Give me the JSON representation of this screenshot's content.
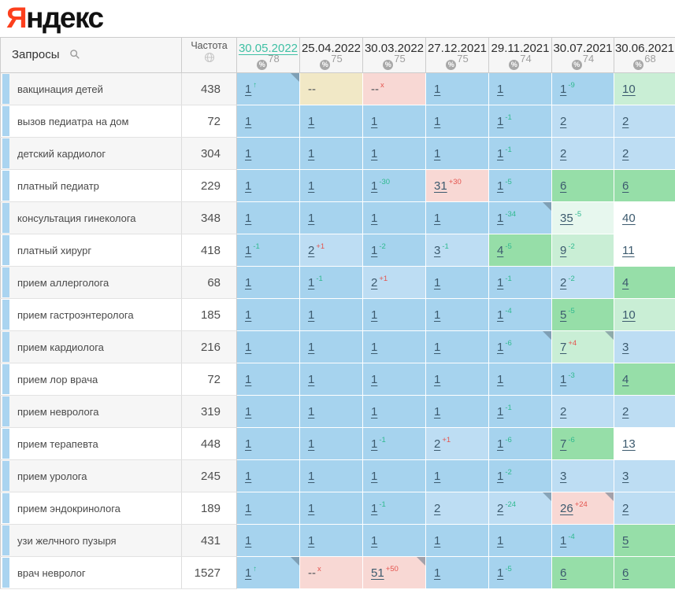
{
  "logo": {
    "first_letter": "Я",
    "rest": "ндекс"
  },
  "palette": {
    "pos_top1": "#a6d3ee",
    "pos_top3": "#bdddf3",
    "pos_top10": "#96dea8",
    "pos_top10_light": "#c9eed5",
    "pos_pale_green": "#e7f7ee",
    "pos_drop": "#f8d8d4",
    "pos_none": "#f1e8c6",
    "row_strip": "#aad4f0",
    "change_up": "#2fb98f",
    "change_down": "#e4544e",
    "selected_date": "#3fc0a4",
    "position_text": "#3c5a6e"
  },
  "header": {
    "queries_label": "Запросы",
    "search_icon": "magnifier",
    "frequency_label": "Частота",
    "frequency_icon": "globe",
    "percent_icon": "%",
    "dates": [
      {
        "label": "30.05.2022",
        "visibility": "78",
        "selected": true
      },
      {
        "label": "25.04.2022",
        "visibility": "75",
        "selected": false
      },
      {
        "label": "30.03.2022",
        "visibility": "75",
        "selected": false
      },
      {
        "label": "27.12.2021",
        "visibility": "75",
        "selected": false
      },
      {
        "label": "29.11.2021",
        "visibility": "74",
        "selected": false
      },
      {
        "label": "30.07.2021",
        "visibility": "74",
        "selected": false
      },
      {
        "label": "30.06.2021",
        "visibility": "68",
        "selected": false
      }
    ]
  },
  "rows": [
    {
      "query": "вакцинация детей",
      "frequency": "438",
      "cells": [
        {
          "t": "1",
          "s": "↑",
          "sc": "up",
          "bg": "top1",
          "tri": true
        },
        {
          "t": "--",
          "bg": "none",
          "nolink": true
        },
        {
          "t": "--",
          "s": "x",
          "sc": "down",
          "bg": "drop",
          "nolink": true
        },
        {
          "t": "1",
          "bg": "top1"
        },
        {
          "t": "1",
          "bg": "top1"
        },
        {
          "t": "1",
          "s": "-9",
          "sc": "up",
          "bg": "top1"
        },
        {
          "t": "10",
          "bg": "lightgreen"
        }
      ]
    },
    {
      "query": "вызов педиатра на дом",
      "frequency": "72",
      "cells": [
        {
          "t": "1",
          "bg": "top1"
        },
        {
          "t": "1",
          "bg": "top1"
        },
        {
          "t": "1",
          "bg": "top1"
        },
        {
          "t": "1",
          "bg": "top1"
        },
        {
          "t": "1",
          "s": "-1",
          "sc": "up",
          "bg": "top1"
        },
        {
          "t": "2",
          "bg": "top3"
        },
        {
          "t": "2",
          "bg": "top3"
        }
      ]
    },
    {
      "query": "детский кардиолог",
      "frequency": "304",
      "cells": [
        {
          "t": "1",
          "bg": "top1"
        },
        {
          "t": "1",
          "bg": "top1"
        },
        {
          "t": "1",
          "bg": "top1"
        },
        {
          "t": "1",
          "bg": "top1"
        },
        {
          "t": "1",
          "s": "-1",
          "sc": "up",
          "bg": "top1"
        },
        {
          "t": "2",
          "bg": "top3"
        },
        {
          "t": "2",
          "bg": "top3"
        }
      ]
    },
    {
      "query": "платный педиатр",
      "frequency": "229",
      "cells": [
        {
          "t": "1",
          "bg": "top1"
        },
        {
          "t": "1",
          "bg": "top1"
        },
        {
          "t": "1",
          "s": "-30",
          "sc": "up",
          "bg": "top1"
        },
        {
          "t": "31",
          "s": "+30",
          "sc": "down",
          "bg": "drop"
        },
        {
          "t": "1",
          "s": "-5",
          "sc": "up",
          "bg": "top1"
        },
        {
          "t": "6",
          "bg": "green"
        },
        {
          "t": "6",
          "bg": "green"
        }
      ]
    },
    {
      "query": "консультация гинеколога",
      "frequency": "348",
      "cells": [
        {
          "t": "1",
          "bg": "top1"
        },
        {
          "t": "1",
          "bg": "top1"
        },
        {
          "t": "1",
          "bg": "top1"
        },
        {
          "t": "1",
          "bg": "top1"
        },
        {
          "t": "1",
          "s": "-34",
          "sc": "up",
          "bg": "top1",
          "tri": true
        },
        {
          "t": "35",
          "s": "-5",
          "sc": "up",
          "bg": "palegreen"
        },
        {
          "t": "40",
          "bg": "white"
        }
      ]
    },
    {
      "query": "платный хирург",
      "frequency": "418",
      "cells": [
        {
          "t": "1",
          "s": "-1",
          "sc": "up",
          "bg": "top1"
        },
        {
          "t": "2",
          "s": "+1",
          "sc": "down",
          "bg": "top3"
        },
        {
          "t": "1",
          "s": "-2",
          "sc": "up",
          "bg": "top1"
        },
        {
          "t": "3",
          "s": "-1",
          "sc": "up",
          "bg": "top3"
        },
        {
          "t": "4",
          "s": "-5",
          "sc": "up",
          "bg": "green"
        },
        {
          "t": "9",
          "s": "-2",
          "sc": "up",
          "bg": "lightgreen"
        },
        {
          "t": "11",
          "bg": "white"
        }
      ]
    },
    {
      "query": "прием аллерголога",
      "frequency": "68",
      "cells": [
        {
          "t": "1",
          "bg": "top1"
        },
        {
          "t": "1",
          "s": "-1",
          "sc": "up",
          "bg": "top1"
        },
        {
          "t": "2",
          "s": "+1",
          "sc": "down",
          "bg": "top3"
        },
        {
          "t": "1",
          "bg": "top1"
        },
        {
          "t": "1",
          "s": "-1",
          "sc": "up",
          "bg": "top1"
        },
        {
          "t": "2",
          "s": "-2",
          "sc": "up",
          "bg": "top3"
        },
        {
          "t": "4",
          "bg": "green"
        }
      ]
    },
    {
      "query": "прием гастроэнтеролога",
      "frequency": "185",
      "cells": [
        {
          "t": "1",
          "bg": "top1"
        },
        {
          "t": "1",
          "bg": "top1"
        },
        {
          "t": "1",
          "bg": "top1"
        },
        {
          "t": "1",
          "bg": "top1"
        },
        {
          "t": "1",
          "s": "-4",
          "sc": "up",
          "bg": "top1"
        },
        {
          "t": "5",
          "s": "-5",
          "sc": "up",
          "bg": "green"
        },
        {
          "t": "10",
          "bg": "lightgreen"
        }
      ]
    },
    {
      "query": "прием кардиолога",
      "frequency": "216",
      "cells": [
        {
          "t": "1",
          "bg": "top1"
        },
        {
          "t": "1",
          "bg": "top1"
        },
        {
          "t": "1",
          "bg": "top1"
        },
        {
          "t": "1",
          "bg": "top1"
        },
        {
          "t": "1",
          "s": "-6",
          "sc": "up",
          "bg": "top1",
          "tri": true
        },
        {
          "t": "7",
          "s": "+4",
          "sc": "down",
          "bg": "lightgreen",
          "tri": true
        },
        {
          "t": "3",
          "bg": "top3"
        }
      ]
    },
    {
      "query": "прием лор врача",
      "frequency": "72",
      "cells": [
        {
          "t": "1",
          "bg": "top1"
        },
        {
          "t": "1",
          "bg": "top1"
        },
        {
          "t": "1",
          "bg": "top1"
        },
        {
          "t": "1",
          "bg": "top1"
        },
        {
          "t": "1",
          "bg": "top1"
        },
        {
          "t": "1",
          "s": "-3",
          "sc": "up",
          "bg": "top1"
        },
        {
          "t": "4",
          "bg": "green"
        }
      ]
    },
    {
      "query": "прием невролога",
      "frequency": "319",
      "cells": [
        {
          "t": "1",
          "bg": "top1"
        },
        {
          "t": "1",
          "bg": "top1"
        },
        {
          "t": "1",
          "bg": "top1"
        },
        {
          "t": "1",
          "bg": "top1"
        },
        {
          "t": "1",
          "s": "-1",
          "sc": "up",
          "bg": "top1"
        },
        {
          "t": "2",
          "bg": "top3"
        },
        {
          "t": "2",
          "bg": "top3"
        }
      ]
    },
    {
      "query": "прием терапевта",
      "frequency": "448",
      "cells": [
        {
          "t": "1",
          "bg": "top1"
        },
        {
          "t": "1",
          "bg": "top1"
        },
        {
          "t": "1",
          "s": "-1",
          "sc": "up",
          "bg": "top1"
        },
        {
          "t": "2",
          "s": "+1",
          "sc": "down",
          "bg": "top3"
        },
        {
          "t": "1",
          "s": "-6",
          "sc": "up",
          "bg": "top1"
        },
        {
          "t": "7",
          "s": "-6",
          "sc": "up",
          "bg": "green"
        },
        {
          "t": "13",
          "bg": "white"
        }
      ]
    },
    {
      "query": "прием уролога",
      "frequency": "245",
      "cells": [
        {
          "t": "1",
          "bg": "top1"
        },
        {
          "t": "1",
          "bg": "top1"
        },
        {
          "t": "1",
          "bg": "top1"
        },
        {
          "t": "1",
          "bg": "top1"
        },
        {
          "t": "1",
          "s": "-2",
          "sc": "up",
          "bg": "top1"
        },
        {
          "t": "3",
          "bg": "top3"
        },
        {
          "t": "3",
          "bg": "top3"
        }
      ]
    },
    {
      "query": "прием эндокринолога",
      "frequency": "189",
      "cells": [
        {
          "t": "1",
          "bg": "top1"
        },
        {
          "t": "1",
          "bg": "top1"
        },
        {
          "t": "1",
          "s": "-1",
          "sc": "up",
          "bg": "top1"
        },
        {
          "t": "2",
          "bg": "top3"
        },
        {
          "t": "2",
          "s": "-24",
          "sc": "up",
          "bg": "top3",
          "tri": true
        },
        {
          "t": "26",
          "s": "+24",
          "sc": "down",
          "bg": "drop",
          "tri": true
        },
        {
          "t": "2",
          "bg": "top3"
        }
      ]
    },
    {
      "query": "узи желчного пузыря",
      "frequency": "431",
      "cells": [
        {
          "t": "1",
          "bg": "top1"
        },
        {
          "t": "1",
          "bg": "top1"
        },
        {
          "t": "1",
          "bg": "top1"
        },
        {
          "t": "1",
          "bg": "top1"
        },
        {
          "t": "1",
          "bg": "top1"
        },
        {
          "t": "1",
          "s": "-4",
          "sc": "up",
          "bg": "top1"
        },
        {
          "t": "5",
          "bg": "green"
        }
      ]
    },
    {
      "query": "врач невролог",
      "frequency": "1527",
      "cells": [
        {
          "t": "1",
          "s": "↑",
          "sc": "up",
          "bg": "top1",
          "tri": true
        },
        {
          "t": "--",
          "s": "x",
          "sc": "down",
          "bg": "drop",
          "nolink": true
        },
        {
          "t": "51",
          "s": "+50",
          "sc": "down",
          "bg": "drop",
          "tri": true
        },
        {
          "t": "1",
          "bg": "top1"
        },
        {
          "t": "1",
          "s": "-5",
          "sc": "up",
          "bg": "top1"
        },
        {
          "t": "6",
          "bg": "green"
        },
        {
          "t": "6",
          "bg": "green"
        }
      ]
    }
  ]
}
